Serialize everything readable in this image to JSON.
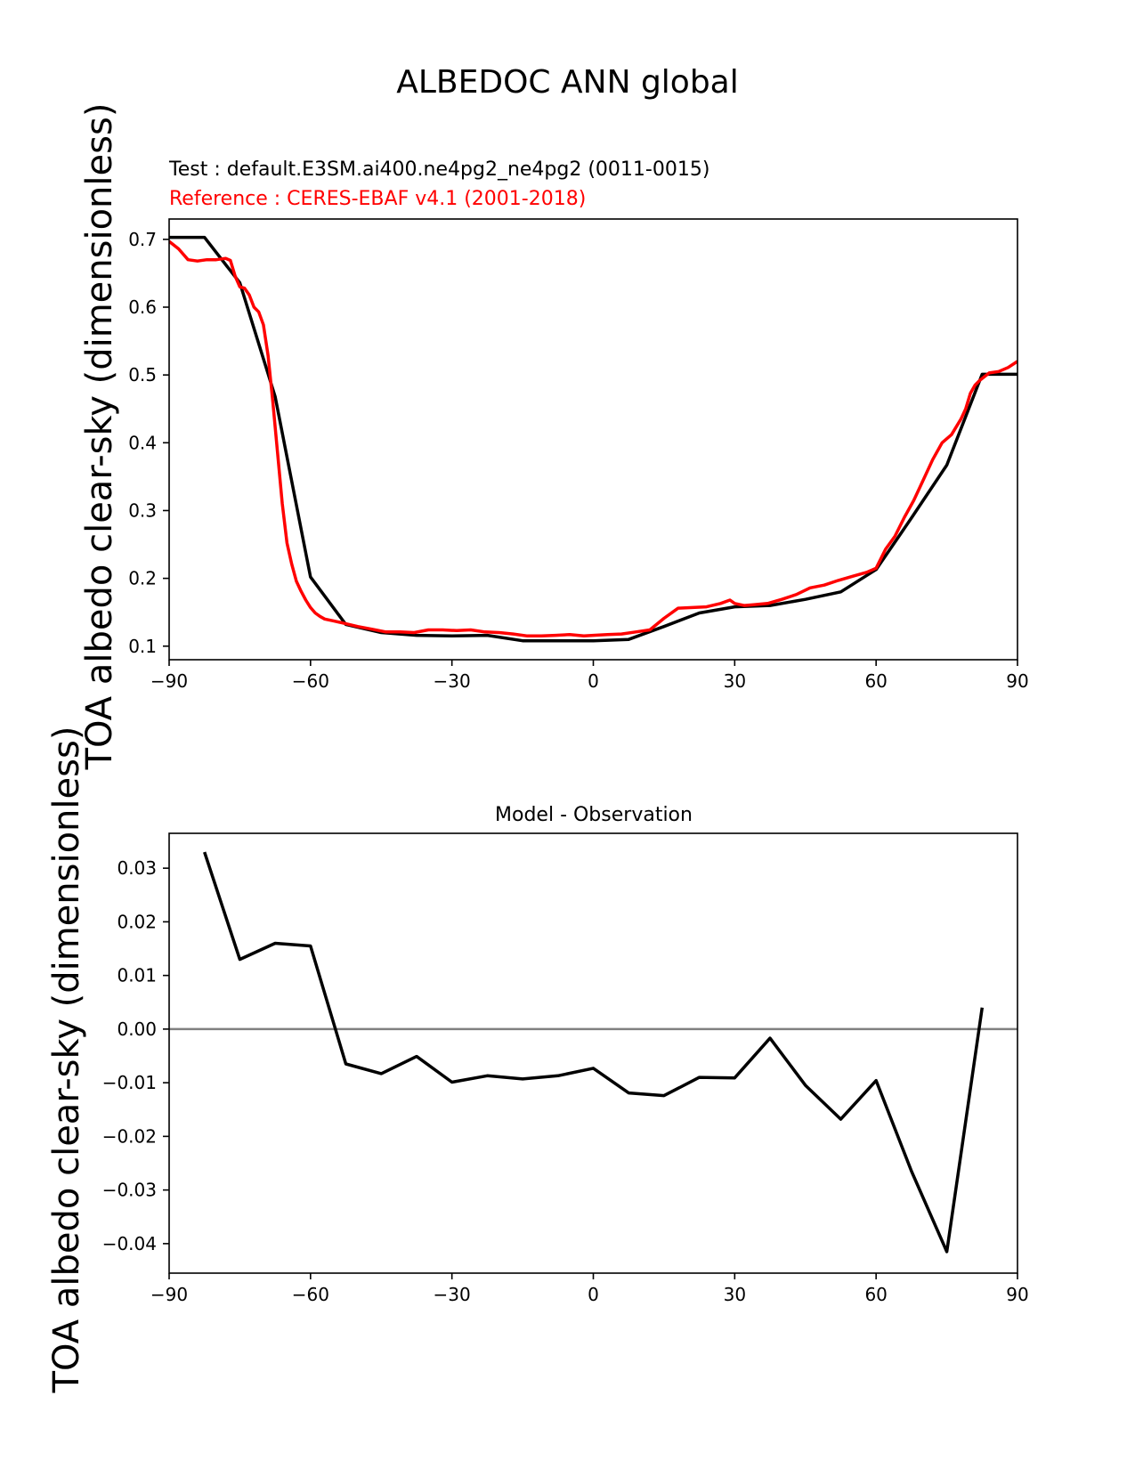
{
  "title": "ALBEDOC ANN global",
  "chart_data": [
    {
      "type": "line",
      "test_label": "Test : default.E3SM.ai400.ne4pg2_ne4pg2 (0011-0015)",
      "reference_label": "Reference : CERES-EBAF v4.1 (2001-2018)",
      "ylabel": "TOA albedo clear-sky (dimensionless)",
      "xlim": [
        -90,
        90
      ],
      "ylim": [
        0.08,
        0.73
      ],
      "xticks": [
        -90,
        -60,
        -30,
        0,
        30,
        60,
        90
      ],
      "xtick_labels": [
        "−90",
        "−60",
        "−30",
        "0",
        "30",
        "60",
        "90"
      ],
      "yticks": [
        0.1,
        0.2,
        0.3,
        0.4,
        0.5,
        0.6,
        0.7
      ],
      "ytick_labels": [
        "0.1",
        "0.2",
        "0.3",
        "0.4",
        "0.5",
        "0.6",
        "0.7"
      ],
      "grid": false,
      "colors": {
        "test": "#000000",
        "reference": "#ff0000"
      },
      "series": [
        {
          "key": "test",
          "x": [
            -90,
            -82.5,
            -75,
            -67.5,
            -60,
            -52.5,
            -45,
            -37.5,
            -30,
            -22.5,
            -15,
            -7.5,
            0,
            7.5,
            15,
            22.5,
            30,
            37.5,
            45,
            52.5,
            60,
            67.5,
            75,
            82.5,
            90
          ],
          "y": [
            0.703,
            0.703,
            0.636,
            0.468,
            0.202,
            0.132,
            0.12,
            0.116,
            0.115,
            0.116,
            0.108,
            0.108,
            0.108,
            0.11,
            0.129,
            0.149,
            0.158,
            0.16,
            0.169,
            0.18,
            0.213,
            0.289,
            0.367,
            0.501,
            0.501
          ]
        },
        {
          "key": "reference",
          "x": [
            -90,
            -88,
            -86,
            -84,
            -82,
            -80,
            -78,
            -77,
            -76,
            -75,
            -74,
            -73,
            -72,
            -71,
            -70,
            -69,
            -68,
            -67,
            -66,
            -65,
            -64,
            -63,
            -62,
            -61,
            -60,
            -59,
            -58,
            -57,
            -55,
            -53,
            -50,
            -47,
            -44,
            -41,
            -38,
            -35,
            -32,
            -29,
            -26,
            -23,
            -20,
            -17,
            -14,
            -11,
            -8,
            -5,
            -2,
            0,
            3,
            6,
            9,
            12,
            15,
            18,
            21,
            24,
            27,
            29,
            30,
            32,
            34,
            37,
            40,
            43,
            46,
            49,
            52,
            55,
            58,
            60,
            62,
            64,
            66,
            68,
            70,
            72,
            74,
            76,
            78,
            79,
            80,
            81,
            82,
            84,
            86,
            88,
            90
          ],
          "y": [
            0.697,
            0.686,
            0.67,
            0.668,
            0.67,
            0.67,
            0.672,
            0.669,
            0.646,
            0.63,
            0.628,
            0.618,
            0.6,
            0.593,
            0.574,
            0.528,
            0.46,
            0.385,
            0.31,
            0.252,
            0.221,
            0.196,
            0.181,
            0.168,
            0.157,
            0.149,
            0.144,
            0.14,
            0.137,
            0.134,
            0.129,
            0.125,
            0.121,
            0.121,
            0.12,
            0.124,
            0.124,
            0.123,
            0.124,
            0.121,
            0.12,
            0.118,
            0.115,
            0.115,
            0.116,
            0.117,
            0.115,
            0.116,
            0.117,
            0.118,
            0.121,
            0.124,
            0.141,
            0.156,
            0.157,
            0.158,
            0.163,
            0.168,
            0.163,
            0.16,
            0.161,
            0.163,
            0.169,
            0.176,
            0.186,
            0.19,
            0.197,
            0.203,
            0.209,
            0.215,
            0.243,
            0.262,
            0.29,
            0.315,
            0.345,
            0.375,
            0.4,
            0.412,
            0.435,
            0.45,
            0.473,
            0.485,
            0.492,
            0.503,
            0.505,
            0.511,
            0.52
          ]
        }
      ]
    },
    {
      "type": "line",
      "title": "Model - Observation",
      "ylabel": "TOA albedo clear-sky (dimensionless)",
      "xlim": [
        -90,
        90
      ],
      "ylim": [
        -0.0455,
        0.0365
      ],
      "xticks": [
        -90,
        -60,
        -30,
        0,
        30,
        60,
        90
      ],
      "xtick_labels": [
        "−90",
        "−60",
        "−30",
        "0",
        "30",
        "60",
        "90"
      ],
      "yticks": [
        0.03,
        0.02,
        0.01,
        0.0,
        -0.01,
        -0.02,
        -0.03,
        -0.04
      ],
      "ytick_labels": [
        "0.03",
        "0.02",
        "0.01",
        "0.00",
        "−0.01",
        "−0.02",
        "−0.03",
        "−0.04"
      ],
      "zero_line": true,
      "grid": false,
      "colors": {
        "diff": "#000000",
        "zero_line": "#808080"
      },
      "series": [
        {
          "key": "diff",
          "x": [
            -82.5,
            -75,
            -67.5,
            -60,
            -52.5,
            -45,
            -37.5,
            -30,
            -22.5,
            -15,
            -7.5,
            0,
            7.5,
            15,
            22.5,
            30,
            37.5,
            45,
            52.5,
            60,
            67.5,
            75,
            82.5
          ],
          "y": [
            0.033,
            0.013,
            0.016,
            0.0155,
            -0.0065,
            -0.0083,
            -0.0051,
            -0.0099,
            -0.0087,
            -0.0093,
            -0.0087,
            -0.0073,
            -0.0119,
            -0.0124,
            -0.009,
            -0.0091,
            -0.0017,
            -0.0105,
            -0.0168,
            -0.0096,
            -0.0265,
            -0.0415,
            0.004
          ]
        }
      ]
    }
  ]
}
